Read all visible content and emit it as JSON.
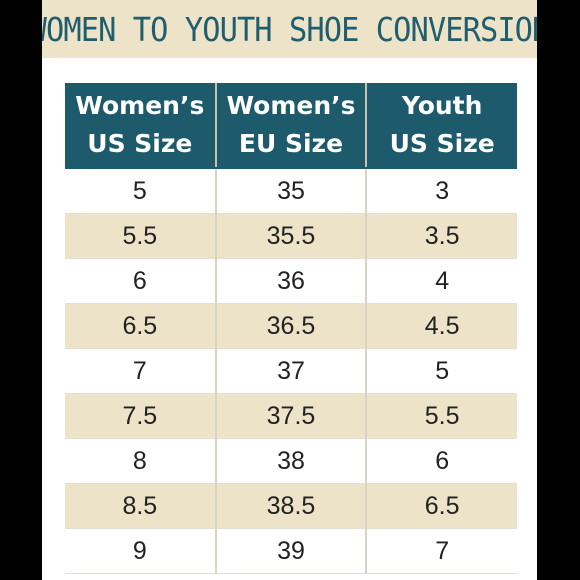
{
  "title": "WOMEN TO YOUTH SHOE CONVERSION",
  "columns": [
    {
      "line1": "Women’s",
      "line2": "US Size"
    },
    {
      "line1": "Women’s",
      "line2": "EU Size"
    },
    {
      "line1": "Youth",
      "line2": "US Size"
    }
  ],
  "rows": [
    [
      "5",
      "35",
      "3"
    ],
    [
      "5.5",
      "35.5",
      "3.5"
    ],
    [
      "6",
      "36",
      "4"
    ],
    [
      "6.5",
      "36.5",
      "4.5"
    ],
    [
      "7",
      "37",
      "5"
    ],
    [
      "7.5",
      "37.5",
      "5.5"
    ],
    [
      "8",
      "38",
      "6"
    ],
    [
      "8.5",
      "38.5",
      "6.5"
    ],
    [
      "9",
      "39",
      "7"
    ]
  ],
  "colors": {
    "header_bg": "#1d5a6b",
    "title_color": "#1f5e6e",
    "stripe": "#ede3c8",
    "outer_bg": "#000000"
  }
}
